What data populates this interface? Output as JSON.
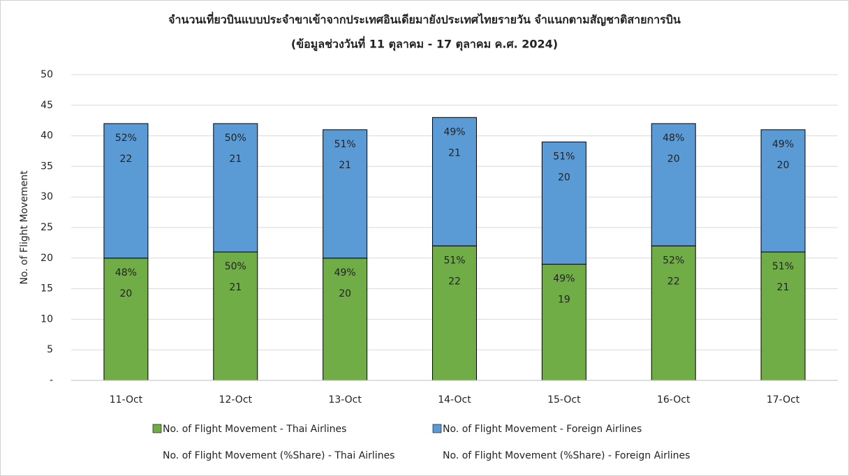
{
  "chart_data": {
    "type": "stacked_bar",
    "title": "จำนวนเที่ยวบินแบบประจำขาเข้าจากประเทศอินเดียมายังประเทศไทยรายวัน  จำแนกตามสัญชาติสายการบิน",
    "subtitle": "(ข้อมูลช่วงวันที่ 11 ตุลาคม - 17 ตุลาคม ค.ศ. 2024)",
    "y_label": "No. of Flight Movement",
    "categories": [
      "11-Oct",
      "12-Oct",
      "13-Oct",
      "14-Oct",
      "15-Oct",
      "16-Oct",
      "17-Oct"
    ],
    "series": [
      {
        "name": "No. of Flight Movement - Thai Airlines",
        "color": "#70ad47",
        "values": [
          20,
          21,
          20,
          22,
          19,
          22,
          21
        ]
      },
      {
        "name": "No. of Flight Movement - Foreign Airlines",
        "color": "#5b9bd5",
        "values": [
          22,
          21,
          21,
          21,
          20,
          20,
          20
        ]
      }
    ],
    "share_series": [
      {
        "name": "No. of Flight Movement (%Share) - Thai Airlines",
        "of": 0,
        "values": [
          48,
          50,
          49,
          51,
          49,
          52,
          51
        ],
        "value_labels": [
          "48%",
          "50%",
          "49%",
          "51%",
          "49%",
          "52%",
          "51%"
        ]
      },
      {
        "name": "No. of Flight Movement (%Share) - Foreign Airlines",
        "of": 1,
        "values": [
          52,
          50,
          51,
          49,
          51,
          48,
          49
        ],
        "value_labels": [
          "52%",
          "50%",
          "51%",
          "49%",
          "51%",
          "48%",
          "49%"
        ]
      }
    ],
    "ylim": [
      0,
      50
    ],
    "yticks": [
      {
        "value": 0,
        "label": "-"
      },
      5,
      10,
      15,
      20,
      25,
      30,
      35,
      40,
      45,
      50
    ],
    "grid": true
  }
}
